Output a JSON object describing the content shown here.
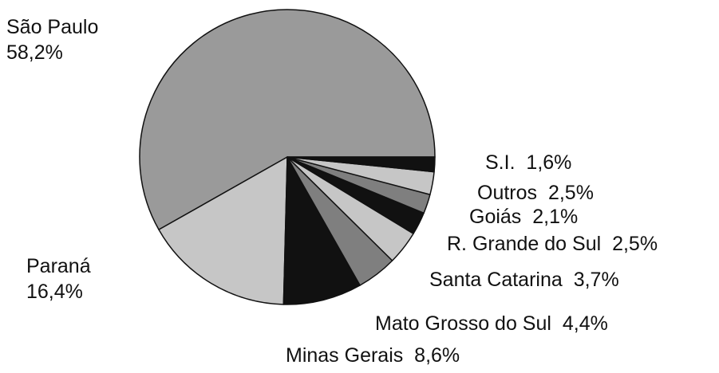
{
  "chart_data": {
    "type": "pie",
    "start": "east",
    "direction": "counterclockwise",
    "slices": [
      {
        "label": "São Paulo",
        "value_label": "58,2%",
        "value": 58.2,
        "color": "#9a9a9a"
      },
      {
        "label": "Paraná",
        "value_label": "16,4%",
        "value": 16.4,
        "color": "#c6c6c6"
      },
      {
        "label": "Minas Gerais",
        "value_label": "8,6%",
        "value": 8.6,
        "color": "#111111"
      },
      {
        "label": "Mato Grosso do Sul",
        "value_label": "4,4%",
        "value": 4.4,
        "color": "#7f7f7f"
      },
      {
        "label": "Santa Catarina",
        "value_label": "3,7%",
        "value": 3.7,
        "color": "#c6c6c6"
      },
      {
        "label": "R. Grande do Sul",
        "value_label": "2,5%",
        "value": 2.5,
        "color": "#111111"
      },
      {
        "label": "Goiás",
        "value_label": "2,1%",
        "value": 2.1,
        "color": "#7f7f7f"
      },
      {
        "label": "Outros",
        "value_label": "2,5%",
        "value": 2.5,
        "color": "#c6c6c6"
      },
      {
        "label": "S.I.",
        "value_label": "1,6%",
        "value": 1.6,
        "color": "#111111"
      }
    ]
  }
}
